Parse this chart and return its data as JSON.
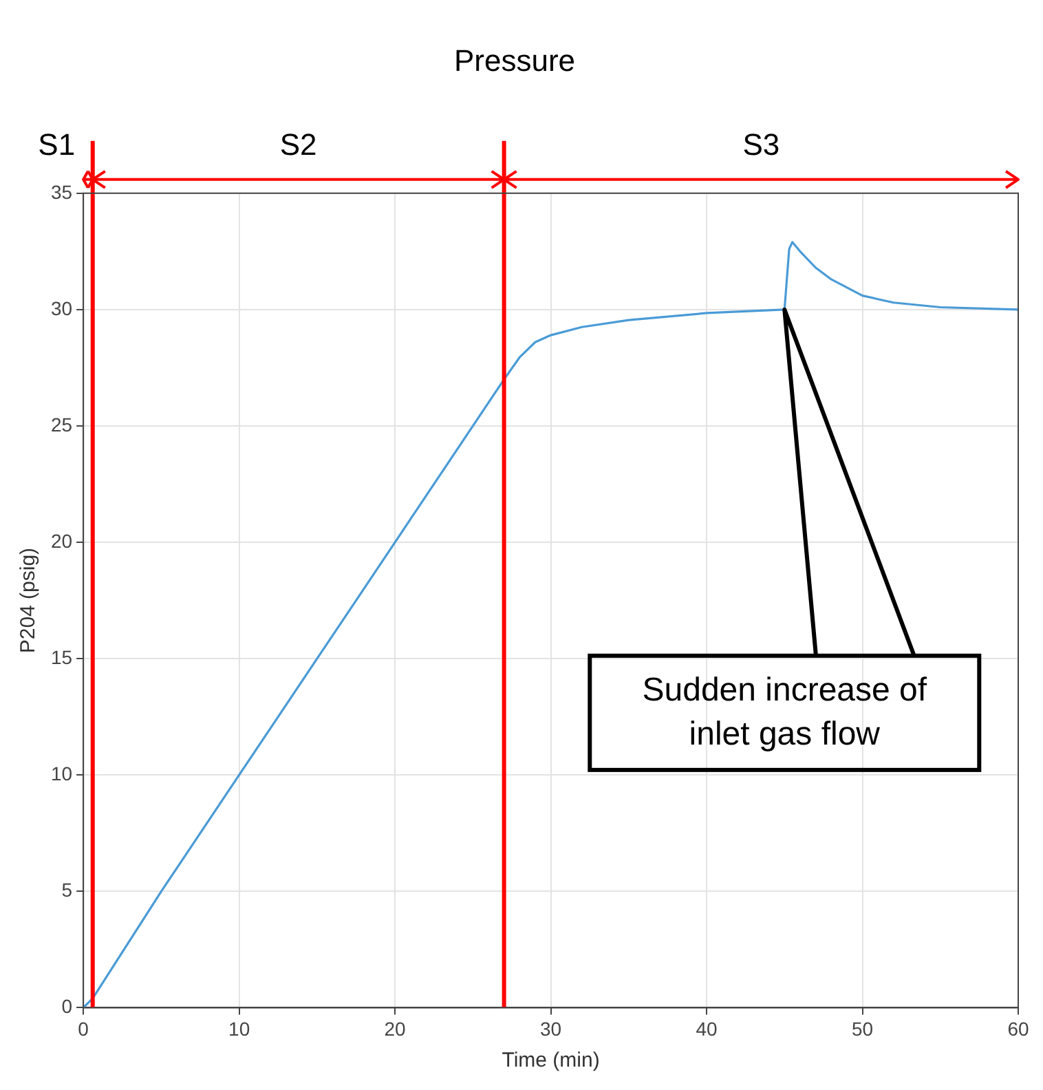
{
  "chart_data": {
    "type": "line",
    "title": "Pressure",
    "xlabel": "Time (min)",
    "ylabel": "P204 (psig)",
    "x": [
      0,
      0.6,
      5,
      10,
      15,
      20,
      26,
      27,
      28,
      29,
      30,
      32,
      35,
      40,
      45,
      45.3,
      45.5,
      46,
      47,
      48,
      50,
      52,
      55,
      60
    ],
    "series": [
      {
        "color": "#4a9bd6",
        "values": [
          0,
          0.4,
          5,
          10,
          15,
          20,
          26,
          27,
          27.95,
          28.6,
          28.9,
          29.25,
          29.55,
          29.85,
          30,
          32.6,
          32.9,
          32.5,
          31.8,
          31.3,
          30.6,
          30.3,
          30.1,
          30
        ]
      }
    ],
    "xlim": [
      0,
      60
    ],
    "xticks": [
      0,
      10,
      20,
      30,
      40,
      50,
      60
    ],
    "ylim": [
      0,
      35
    ],
    "yticks": [
      0,
      5,
      10,
      15,
      20,
      25,
      30,
      35
    ],
    "grid": true,
    "legend": false,
    "marker": "none",
    "line_style": "solid",
    "ref_lines": [
      {
        "axis": "x",
        "value": 0.6,
        "color": "#ff0000"
      },
      {
        "axis": "x",
        "value": 27,
        "color": "#ff0000"
      }
    ],
    "annotations": [
      "S1",
      "S2",
      "S3",
      "Sudden increase of inlet gas flow"
    ]
  }
}
